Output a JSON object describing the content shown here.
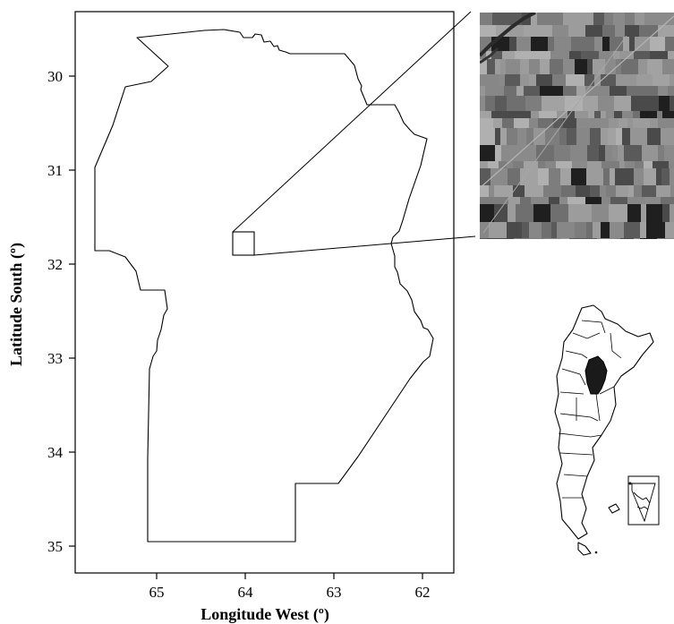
{
  "map": {
    "x_axis_title": "Longitude West (º)",
    "y_axis_title": "Latitude South (º)",
    "x_ticks": [
      "65",
      "64",
      "63",
      "62"
    ],
    "y_ticks": [
      "30",
      "31",
      "32",
      "33",
      "34",
      "35"
    ]
  },
  "colors": {
    "outline": "#000000",
    "highlight_fill": "#1a1a1a",
    "satellite_base": "#8a8a8a"
  },
  "icons": {
    "study_region": "cordoba-province-outline",
    "study_site": "study-area-box",
    "satellite_inset": "satellite-image-inset",
    "country_inset": "argentina-locator-map"
  }
}
